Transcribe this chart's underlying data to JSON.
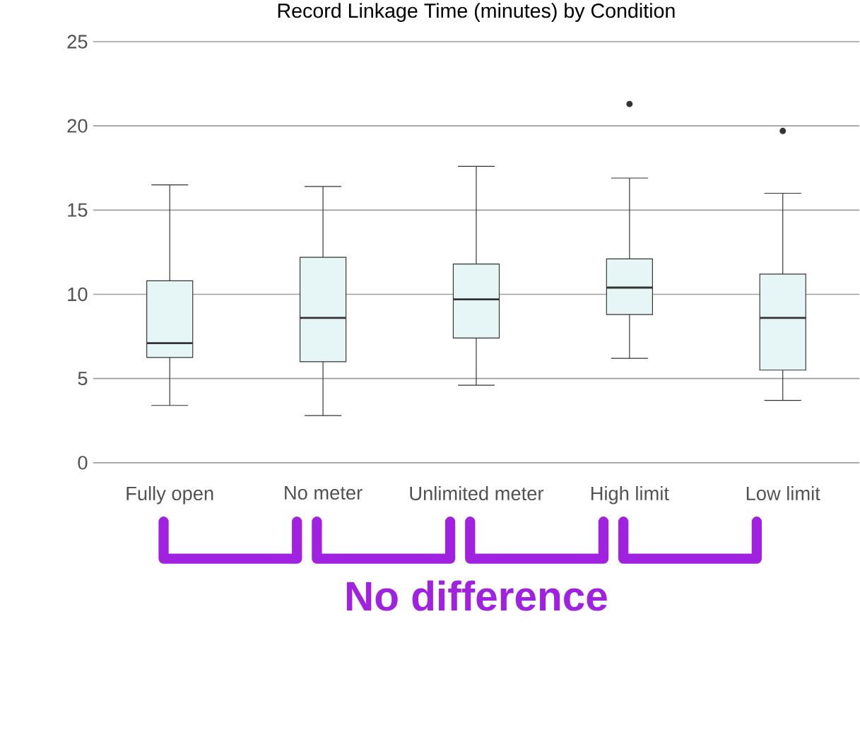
{
  "chart_data": {
    "type": "box",
    "title": "Record Linkage Time (minutes) by Condition",
    "categories": [
      "Fully open",
      "No meter",
      "Unlimited meter",
      "High limit",
      "Low limit"
    ],
    "boxes": [
      {
        "low": 3.4,
        "q1": 6.25,
        "median": 7.1,
        "q3": 10.8,
        "high": 16.5
      },
      {
        "low": 2.8,
        "q1": 6.0,
        "median": 8.6,
        "q3": 12.2,
        "high": 16.4
      },
      {
        "low": 4.6,
        "q1": 7.4,
        "median": 9.7,
        "q3": 11.8,
        "high": 17.6
      },
      {
        "low": 6.2,
        "q1": 8.8,
        "median": 10.4,
        "q3": 12.1,
        "high": 16.9,
        "outliers": [
          21.3
        ]
      },
      {
        "low": 3.7,
        "q1": 5.5,
        "median": 8.6,
        "q3": 11.2,
        "high": 16.0,
        "outliers": [
          19.7
        ]
      }
    ],
    "color": "#e6f6f6",
    "ylim": [
      0,
      25
    ],
    "yticks": [
      0,
      5,
      10,
      15,
      20,
      25
    ],
    "grid": "y",
    "annotations": [
      "No difference"
    ]
  }
}
